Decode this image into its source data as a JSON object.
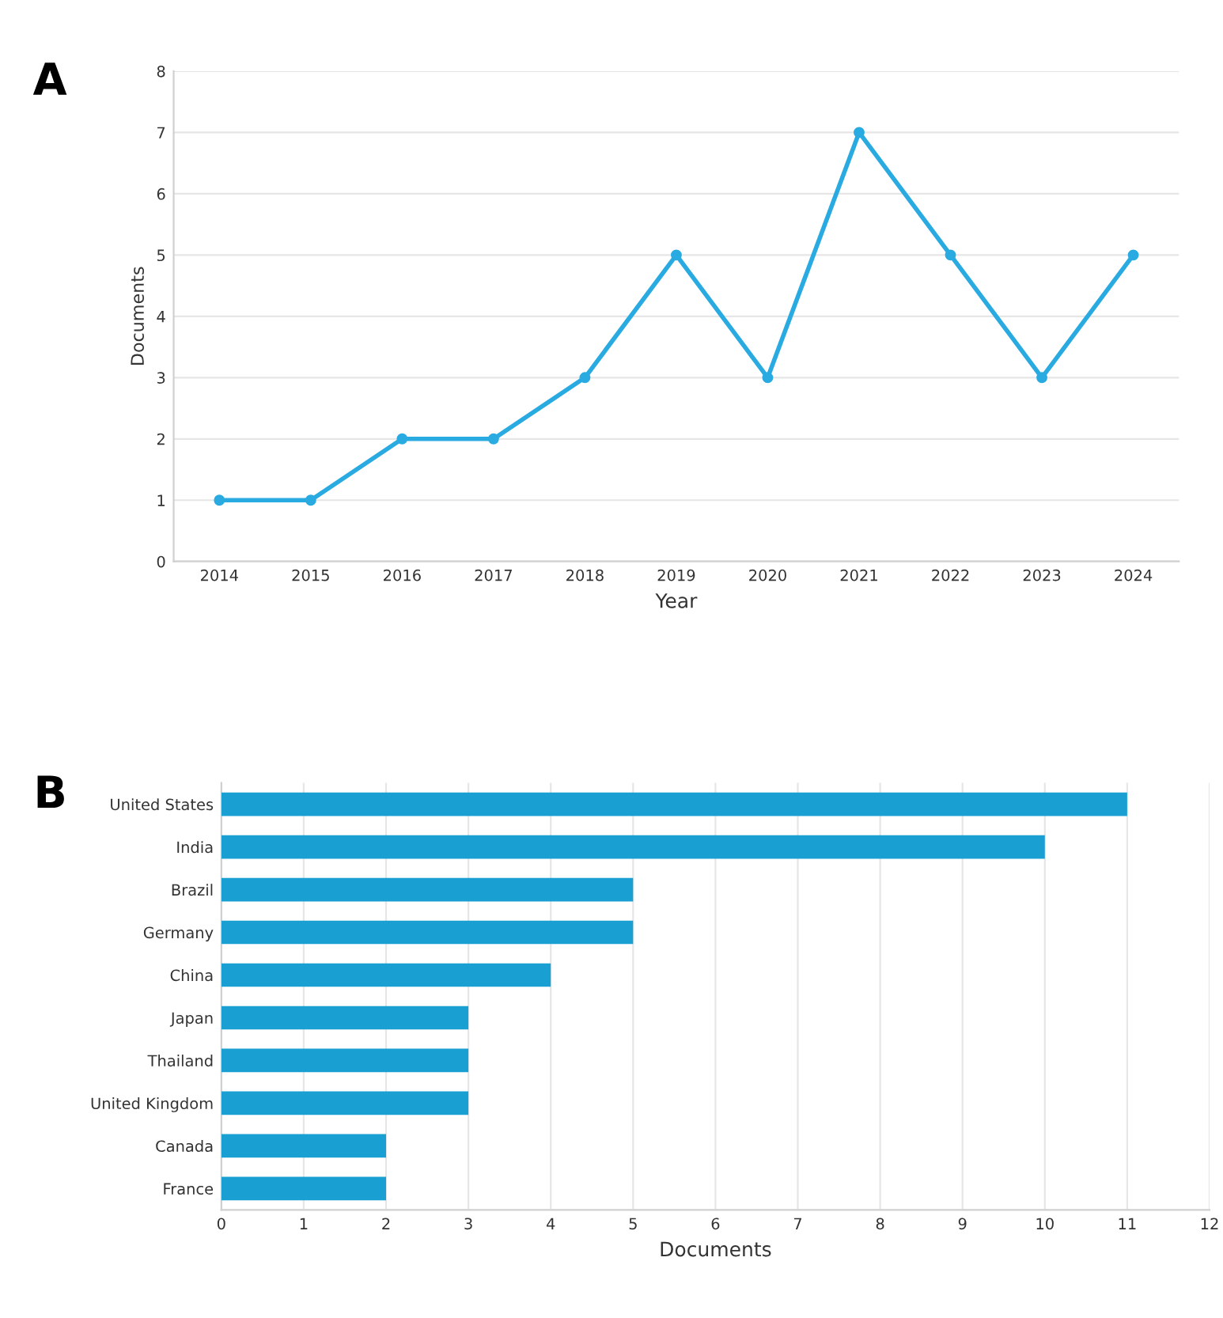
{
  "chart_data": [
    {
      "type": "line",
      "title": "A",
      "xlabel": "Year",
      "ylabel": "Documents",
      "categories": [
        "2014",
        "2015",
        "2016",
        "2017",
        "2018",
        "2019",
        "2020",
        "2021",
        "2022",
        "2023",
        "2024"
      ],
      "series": [
        {
          "color": "#29abe2",
          "values": [
            1,
            1,
            2,
            2,
            3,
            5,
            3,
            7,
            5,
            3,
            5
          ]
        }
      ],
      "ylim": [
        0,
        8
      ],
      "yticks": [
        0,
        1,
        2,
        3,
        4,
        5,
        6,
        7,
        8
      ],
      "grid": "y",
      "marker": "circle",
      "line_style": "solid",
      "legend": false
    },
    {
      "type": "bar",
      "orientation": "horizontal",
      "title": "B",
      "xlabel": "Documents",
      "categories": [
        "United States",
        "India",
        "Brazil",
        "Germany",
        "China",
        "Japan",
        "Thailand",
        "United Kingdom",
        "Canada",
        "France"
      ],
      "series": [
        {
          "color": "#1a9fd3",
          "values": [
            11,
            10,
            5,
            5,
            4,
            3,
            3,
            3,
            2,
            2
          ]
        }
      ],
      "xlim": [
        0,
        12
      ],
      "xticks": [
        0,
        1,
        2,
        3,
        4,
        5,
        6,
        7,
        8,
        9,
        10,
        11,
        12
      ],
      "grid": "x",
      "legend": false
    }
  ]
}
